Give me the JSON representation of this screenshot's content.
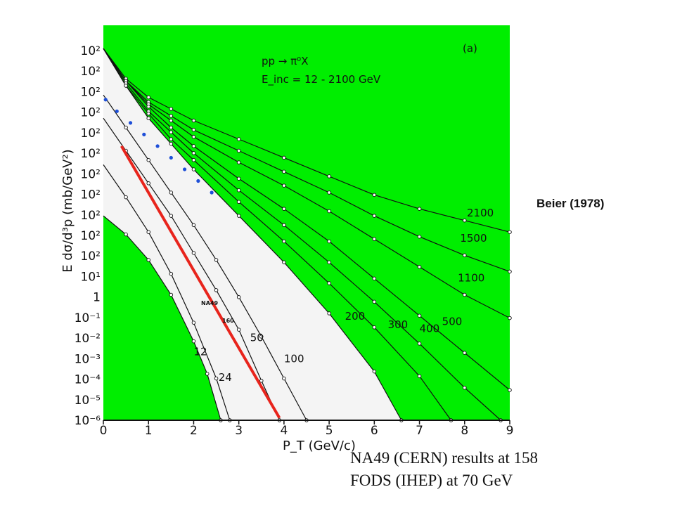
{
  "slide": {
    "credit": "Beier (1978)",
    "caption_lines": [
      "NA49 (CERN) results at 158",
      "FODS (IHEP) at 70 GeV"
    ]
  },
  "colors": {
    "panel_fill": "#00ee00",
    "curve": "#111111",
    "na49": "#1e4fd8",
    "fods": "#e8241c",
    "wedge": "#f4f4f4"
  },
  "chart_data": {
    "type": "line",
    "title": "",
    "xlabel": "P_T (GeV/c)",
    "ylabel": "E dσ/d³p (mb/GeV²)",
    "xlim": [
      0,
      9
    ],
    "x_ticks": [
      "0",
      "1",
      "2",
      "3",
      "4",
      "5",
      "6",
      "7",
      "8",
      "9"
    ],
    "y_ticks": [
      "10²",
      "10²",
      "10²",
      "10²",
      "10²",
      "10²",
      "10²",
      "10²",
      "10²",
      "10²",
      "10²",
      "10¹",
      "1",
      "10⁻¹",
      "10⁻²",
      "10⁻³",
      "10⁻⁴",
      "10⁻⁵",
      "10⁻⁶"
    ],
    "inset": {
      "reaction": "pp → π⁰X",
      "energy": "E_inc = 12 - 2100 GeV",
      "panel": "(a)"
    },
    "curve_labels": [
      "2100",
      "1500",
      "1100",
      "500",
      "400",
      "300",
      "200",
      "100",
      "50",
      "24",
      "12"
    ],
    "overlay_labels": [
      "NA49",
      "160"
    ],
    "series": [
      {
        "name": "2100",
        "x": [
          0,
          0.5,
          1,
          1.5,
          2,
          3,
          4,
          5,
          6,
          7,
          8,
          9
        ],
        "y": [
          2,
          1.35,
          0.95,
          0.7,
          0.45,
          0.05,
          -0.35,
          -0.75,
          -1.15,
          -1.45,
          -1.7,
          -1.95
        ]
      },
      {
        "name": "1500",
        "x": [
          0,
          0.5,
          1,
          1.5,
          2,
          3,
          4,
          5,
          6,
          7,
          8,
          9
        ],
        "y": [
          2,
          1.3,
          0.85,
          0.55,
          0.25,
          -0.2,
          -0.65,
          -1.1,
          -1.6,
          -2.05,
          -2.45,
          -2.8
        ]
      },
      {
        "name": "1100",
        "x": [
          0,
          0.5,
          1,
          1.5,
          2,
          3,
          4,
          5,
          6,
          7,
          8,
          9
        ],
        "y": [
          2,
          1.3,
          0.8,
          0.45,
          0.1,
          -0.45,
          -0.95,
          -1.5,
          -2.1,
          -2.7,
          -3.3,
          -3.8
        ]
      },
      {
        "name": "500",
        "x": [
          0,
          0.5,
          1,
          1.5,
          2,
          3,
          4,
          5,
          6,
          7,
          8,
          9
        ],
        "y": [
          2,
          1.3,
          0.75,
          0.3,
          -0.1,
          -0.8,
          -1.45,
          -2.15,
          -2.95,
          -3.75,
          -4.55,
          -5.35
        ]
      },
      {
        "name": "400",
        "x": [
          0,
          0.5,
          1,
          1.5,
          2,
          3,
          4,
          5,
          6,
          7,
          8,
          8.8
        ],
        "y": [
          2,
          1.25,
          0.65,
          0.2,
          -0.25,
          -1.05,
          -1.8,
          -2.6,
          -3.45,
          -4.35,
          -5.3,
          -6
        ]
      },
      {
        "name": "300",
        "x": [
          0,
          0.5,
          1,
          1.5,
          2,
          3,
          4,
          5,
          6,
          7,
          7.7
        ],
        "y": [
          2,
          1.2,
          0.6,
          0.05,
          -0.4,
          -1.3,
          -2.15,
          -3.05,
          -4.0,
          -5.05,
          -6
        ]
      },
      {
        "name": "200",
        "x": [
          0,
          0.5,
          1,
          1.5,
          2,
          3,
          4,
          5,
          6,
          6.6
        ],
        "y": [
          2,
          1.2,
          0.5,
          -0.05,
          -0.6,
          -1.6,
          -2.6,
          -3.7,
          -4.95,
          -6
        ]
      },
      {
        "name": "100",
        "x": [
          0,
          0.5,
          1,
          1.5,
          2,
          2.5,
          3,
          3.5,
          4,
          4.5
        ],
        "y": [
          1,
          0.3,
          -0.4,
          -1.1,
          -1.8,
          -2.55,
          -3.35,
          -4.2,
          -5.1,
          -6
        ]
      },
      {
        "name": "50",
        "x": [
          0,
          0.5,
          1,
          1.5,
          2,
          2.5,
          3,
          3.5,
          3.9
        ],
        "y": [
          0.5,
          -0.2,
          -0.9,
          -1.6,
          -2.4,
          -3.2,
          -4.05,
          -5.15,
          -6
        ]
      },
      {
        "name": "24",
        "x": [
          0,
          0.5,
          1,
          1.5,
          2,
          2.5,
          2.8
        ],
        "y": [
          -0.5,
          -1.2,
          -1.95,
          -2.85,
          -3.9,
          -5.1,
          -6
        ]
      },
      {
        "name": "12",
        "x": [
          0,
          0.5,
          1,
          1.5,
          2,
          2.3,
          2.6
        ],
        "y": [
          -1.6,
          -2.0,
          -2.55,
          -3.3,
          -4.3,
          -5.0,
          -6
        ]
      },
      {
        "name": "NA49",
        "x": [
          0.05,
          0.3,
          0.6,
          0.9,
          1.2,
          1.5,
          1.8,
          2.1,
          2.4
        ],
        "y": [
          0.9,
          0.65,
          0.4,
          0.15,
          -0.1,
          -0.35,
          -0.6,
          -0.85,
          -1.1
        ]
      },
      {
        "name": "FODS",
        "x": [
          0.4,
          3.9
        ],
        "y": [
          -0.1,
          -5.95
        ]
      }
    ]
  }
}
